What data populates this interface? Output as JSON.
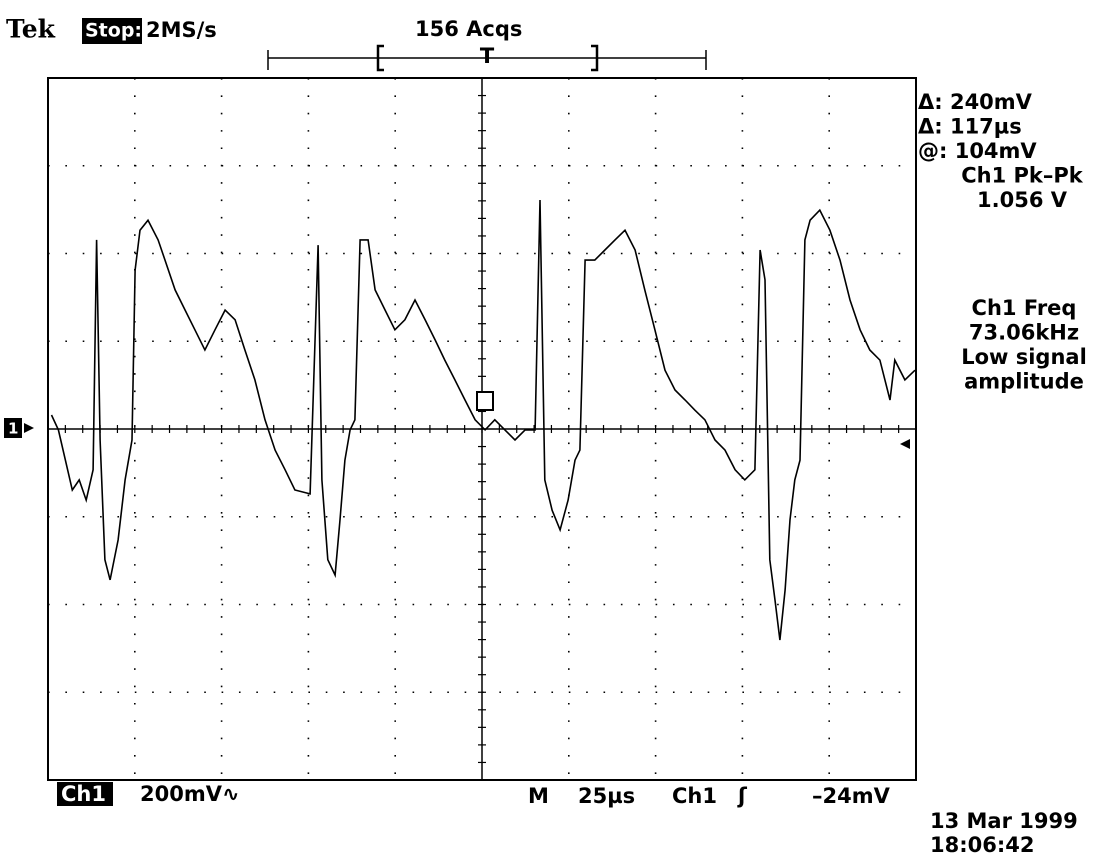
{
  "header": {
    "brand": "Tek",
    "status": "Stop:",
    "sample_rate": "2MS/s",
    "acquisitions": "156 Acqs",
    "trigger_marker": "T"
  },
  "ground_marker": "1",
  "readouts": [
    "Δ: 240mV",
    "Δ: 117µs",
    "@: 104mV",
    "Ch1 Pk–Pk",
    "1.056 V"
  ],
  "measurement": [
    "Ch1 Freq",
    "73.06kHz",
    "Low signal",
    "amplitude"
  ],
  "footer": {
    "channel": "Ch1",
    "scale": "200mV∿",
    "mode": "M",
    "timebase": "25µs",
    "trigger_source": "Ch1",
    "trigger_slope": "ʃ",
    "trigger_level": "–24mV",
    "date": "13 Mar 1999",
    "time": "18:06:42"
  },
  "trace": {
    "xlim": [
      0,
      250
    ],
    "ylim": [
      -800,
      800
    ],
    "x": [
      1,
      3,
      5,
      7,
      9,
      11,
      13,
      14,
      15,
      16.4,
      17.9,
      20.2,
      22.2,
      24.2,
      25.1,
      26.5,
      28.8,
      31.7,
      33.7,
      36.6,
      39.5,
      42.3,
      45.2,
      48.1,
      51,
      53.9,
      56.7,
      59.6,
      62.5,
      65.4,
      68.3,
      71.1,
      75.5,
      77.8,
      78.9,
      80.6,
      82.7,
      84.1,
      85.5,
      87,
      88.4,
      89.9,
      92.2,
      94.2,
      97.1,
      99.9,
      102.8,
      105.7,
      108.6,
      111.5,
      114.3,
      117.2,
      120.1,
      123,
      125.9,
      128.7,
      131.6,
      134.5,
      137.4,
      140.3,
      141.7,
      143.1,
      145.2,
      147.5,
      149.8,
      151.8,
      153.2,
      154.7,
      157.5,
      160.4,
      163.3,
      166.2,
      169.1,
      171.9,
      174.8,
      177.7,
      180.6,
      183.5,
      186.3,
      189.2,
      192.1,
      195,
      197.9,
      200.7,
      203.6,
      205.1,
      206.5,
      207.9,
      209.4,
      210.8,
      212.3,
      213.7,
      215.1,
      216.6,
      218,
      219.5,
      222.3,
      225.2,
      228.1,
      231,
      233.9,
      236.7,
      239.6,
      242.5,
      243.9,
      246.8,
      249.7
    ],
    "y": [
      32,
      -2,
      -71,
      -139,
      -116,
      -162,
      -93,
      431,
      -25,
      -298,
      -344,
      -253,
      -116,
      -25,
      362,
      453,
      476,
      431,
      385,
      317,
      271,
      226,
      180,
      226,
      271,
      249,
      180,
      112,
      21,
      -48,
      -93,
      -139,
      -148,
      419,
      -116,
      -298,
      -333,
      -207,
      -71,
      -2,
      21,
      431,
      431,
      317,
      271,
      226,
      249,
      294,
      249,
      203,
      157,
      112,
      66,
      21,
      -2,
      21,
      -2,
      -25,
      -2,
      -2,
      522,
      -116,
      -185,
      -230,
      -162,
      -71,
      -48,
      385,
      385,
      408,
      431,
      453,
      408,
      317,
      226,
      134,
      89,
      66,
      43,
      21,
      -25,
      -48,
      -93,
      -116,
      -93,
      408,
      340,
      -298,
      -390,
      -481,
      -367,
      -207,
      -116,
      -71,
      431,
      476,
      499,
      453,
      385,
      294,
      226,
      180,
      157,
      66,
      157,
      112,
      134
    ]
  }
}
